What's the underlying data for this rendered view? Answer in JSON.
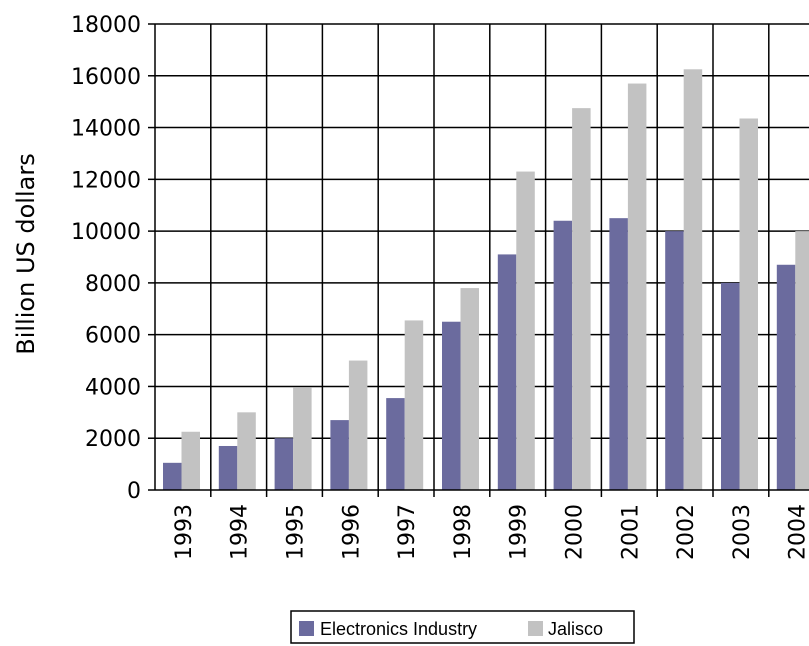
{
  "chart_data": {
    "type": "bar",
    "title": "",
    "xlabel": "",
    "ylabel": "Billion US dollars",
    "ylim": [
      0,
      18000
    ],
    "yticks": [
      0,
      2000,
      4000,
      6000,
      8000,
      10000,
      12000,
      14000,
      16000,
      18000
    ],
    "grid": true,
    "legend_position": "bottom",
    "categories": [
      "1993",
      "1994",
      "1995",
      "1996",
      "1997",
      "1998",
      "1999",
      "2000",
      "2001",
      "2002",
      "2003",
      "2004"
    ],
    "series": [
      {
        "name": "Electronics Industry",
        "color": "#6b6b9e",
        "values": [
          1050,
          1700,
          2000,
          2700,
          3550,
          6500,
          9100,
          10400,
          10500,
          10000,
          8000,
          8700
        ]
      },
      {
        "name": "Jalisco",
        "color": "#c2c2c2",
        "values": [
          2250,
          3000,
          3950,
          5000,
          6550,
          7800,
          12300,
          14750,
          15700,
          16250,
          14350,
          10000
        ]
      }
    ]
  }
}
